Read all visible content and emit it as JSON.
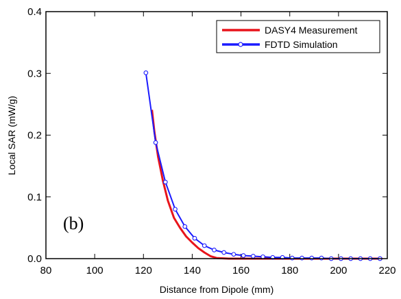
{
  "chart_data": {
    "type": "line",
    "title": "",
    "xlabel": "Distance from Dipole (mm)",
    "ylabel": "Local SAR (mW/g)",
    "xlim": [
      80,
      220
    ],
    "ylim": [
      0,
      0.4
    ],
    "x_ticks": [
      80,
      100,
      120,
      140,
      160,
      180,
      200,
      220
    ],
    "y_ticks": [
      0.0,
      0.1,
      0.2,
      0.3,
      0.4
    ],
    "x_tick_labels": [
      "80",
      "100",
      "120",
      "140",
      "160",
      "180",
      "200",
      "220"
    ],
    "y_tick_labels": [
      "0.0",
      "0.1",
      "0.2",
      "0.3",
      "0.4"
    ],
    "grid": false,
    "legend_position": "top-right",
    "annotation": "(b)",
    "series": [
      {
        "name": "DASY4 Measurement",
        "color": "#e8141b",
        "marker": "none",
        "points": [
          [
            123.5,
            0.241
          ],
          [
            124.5,
            0.205
          ],
          [
            126,
            0.165
          ],
          [
            128,
            0.126
          ],
          [
            130,
            0.094
          ],
          [
            132.5,
            0.066
          ],
          [
            135,
            0.05
          ],
          [
            137.5,
            0.036
          ],
          [
            140,
            0.026
          ],
          [
            142.5,
            0.017
          ],
          [
            145,
            0.01
          ],
          [
            147.5,
            0.004
          ],
          [
            150,
            0.001
          ],
          [
            155,
            0.0
          ],
          [
            160,
            0.0
          ],
          [
            170,
            0.0
          ],
          [
            180,
            0.0
          ],
          [
            190,
            0.0
          ],
          [
            200,
            0.0
          ],
          [
            210,
            0.0
          ],
          [
            218,
            0.0
          ]
        ]
      },
      {
        "name": "FDTD Simulation",
        "color": "#1a1aff",
        "marker": "circle",
        "points": [
          [
            121,
            0.301
          ],
          [
            125,
            0.188
          ],
          [
            129,
            0.124
          ],
          [
            133,
            0.08
          ],
          [
            137,
            0.052
          ],
          [
            141,
            0.033
          ],
          [
            145,
            0.021
          ],
          [
            149,
            0.014
          ],
          [
            153,
            0.01
          ],
          [
            157,
            0.007
          ],
          [
            161,
            0.005
          ],
          [
            165,
            0.004
          ],
          [
            169,
            0.003
          ],
          [
            173,
            0.002
          ],
          [
            177,
            0.002
          ],
          [
            181,
            0.001
          ],
          [
            185,
            0.001
          ],
          [
            189,
            0.001
          ],
          [
            193,
            0.001
          ],
          [
            197,
            0.0
          ],
          [
            201,
            0.0
          ],
          [
            205,
            0.0
          ],
          [
            209,
            0.0
          ],
          [
            213,
            0.0
          ],
          [
            217,
            0.0
          ]
        ]
      }
    ]
  }
}
